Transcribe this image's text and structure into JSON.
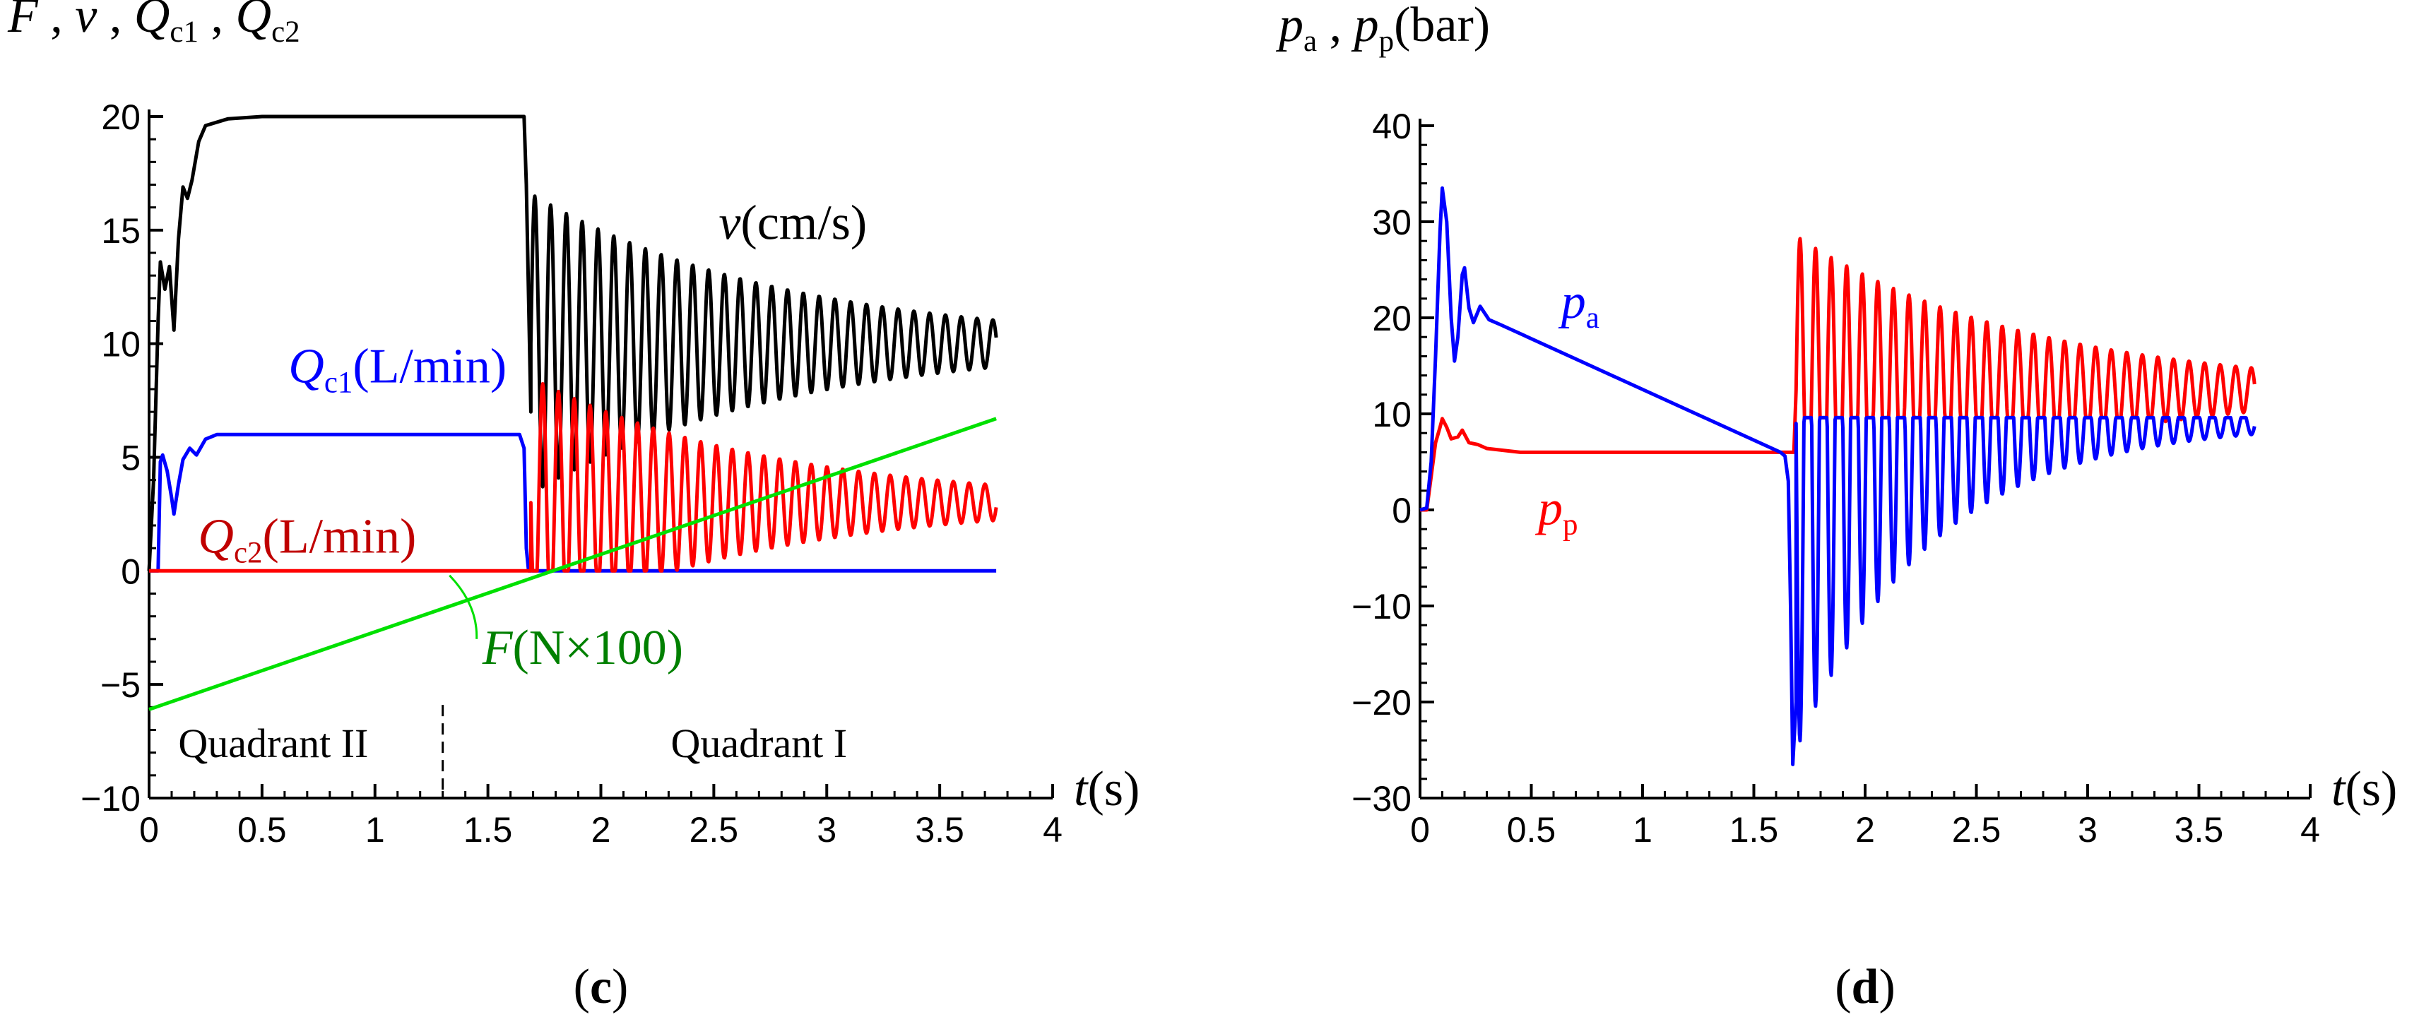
{
  "chart_data": [
    {
      "type": "line",
      "panel_label": "c",
      "title": "",
      "ylabel": {
        "parts": [
          {
            "t": "F",
            "i": true
          },
          {
            "t": " , "
          },
          {
            "t": "v",
            "i": true
          },
          {
            "t": " , "
          },
          {
            "t": "Q",
            "i": true
          },
          {
            "t": "c1",
            "sub": true
          },
          {
            "t": " , "
          },
          {
            "t": "Q",
            "i": true
          },
          {
            "t": "c2",
            "sub": true
          }
        ]
      },
      "xlabel": {
        "parts": [
          {
            "t": "t",
            "i": true
          },
          {
            "t": "(s)"
          }
        ]
      },
      "xlim": [
        0,
        4
      ],
      "ylim": [
        -10,
        20
      ],
      "x_ticks": [
        0,
        0.5,
        1,
        1.5,
        2,
        2.5,
        3,
        3.5,
        4
      ],
      "y_ticks": [
        -10,
        -5,
        0,
        5,
        10,
        15,
        20
      ],
      "quadrant_divider_x": 1.3,
      "quadrant_labels": [
        {
          "text": "Quadrant II",
          "x": 0.55,
          "y": -8.2
        },
        {
          "text": "Quadrant I",
          "x": 2.7,
          "y": -8.2
        }
      ],
      "series": [
        {
          "name": "v (cm/s)",
          "color": "#000000",
          "label": {
            "x": 2.85,
            "y": 14.6,
            "parts": [
              {
                "t": "v",
                "i": true
              },
              {
                "t": "(cm/s)"
              }
            ]
          },
          "points": [
            [
              0,
              0
            ],
            [
              0.02,
              4
            ],
            [
              0.04,
              11
            ],
            [
              0.05,
              13.6
            ],
            [
              0.07,
              12.4
            ],
            [
              0.09,
              13.4
            ],
            [
              0.11,
              10.6
            ],
            [
              0.13,
              14.6
            ],
            [
              0.15,
              16.9
            ],
            [
              0.17,
              16.4
            ],
            [
              0.19,
              17.2
            ],
            [
              0.22,
              18.9
            ],
            [
              0.25,
              19.6
            ],
            [
              0.35,
              19.9
            ],
            [
              0.5,
              20
            ],
            [
              1.66,
              20
            ],
            [
              1.67,
              17
            ],
            [
              1.68,
              12
            ],
            [
              1.69,
              7
            ]
          ],
          "oscillation": {
            "start": 1.69,
            "end": 3.75,
            "center": 10,
            "a0": 6.6,
            "decay": 0.9,
            "freq": 14.3,
            "phase": 0
          }
        },
        {
          "name": "Qc1 (L/min)",
          "color": "#0000ff",
          "label": {
            "x": 1.1,
            "y": 8.3,
            "parts": [
              {
                "t": "Q",
                "i": true
              },
              {
                "t": "c1",
                "sub": true
              },
              {
                "t": "(L/min)"
              }
            ]
          },
          "points": [
            [
              0,
              0
            ],
            [
              0.04,
              0
            ],
            [
              0.05,
              4.8
            ],
            [
              0.06,
              5.1
            ],
            [
              0.08,
              4.4
            ],
            [
              0.1,
              3.2
            ],
            [
              0.11,
              2.5
            ],
            [
              0.13,
              3.8
            ],
            [
              0.15,
              4.9
            ],
            [
              0.18,
              5.4
            ],
            [
              0.21,
              5.1
            ],
            [
              0.25,
              5.8
            ],
            [
              0.3,
              6
            ],
            [
              1.64,
              6
            ],
            [
              1.66,
              5.4
            ],
            [
              1.67,
              1
            ],
            [
              1.68,
              0
            ],
            [
              3.75,
              0
            ]
          ]
        },
        {
          "name": "Qc2 (L/min)",
          "color": "#ff0000",
          "label_color": "#c00000",
          "label": {
            "x": 0.7,
            "y": 0.8,
            "parts": [
              {
                "t": "Q",
                "i": true
              },
              {
                "t": "c2",
                "sub": true
              },
              {
                "t": "(L/min)"
              }
            ]
          },
          "points": [
            [
              0,
              0
            ],
            [
              1.69,
              0
            ]
          ],
          "oscillation": {
            "start": 1.69,
            "end": 3.75,
            "center": 3,
            "a0": 5.5,
            "decay": 0.95,
            "freq": 14.3,
            "phase": 3.14159,
            "clip_min": 0,
            "clip_until": 2.52
          }
        },
        {
          "name": "F (N×100)",
          "color": "#00e000",
          "label_color": "#008000",
          "label": {
            "x": 1.92,
            "y": -4.1,
            "parts": [
              {
                "t": "F",
                "i": true
              },
              {
                "t": "(N×100)"
              }
            ]
          },
          "leader": [
            [
              1.45,
              -3.0
            ],
            [
              1.33,
              -0.2
            ]
          ],
          "points": [
            [
              0,
              -6.1
            ],
            [
              3.75,
              6.7
            ]
          ]
        }
      ]
    },
    {
      "type": "line",
      "panel_label": "d",
      "title": "",
      "ylabel": {
        "parts": [
          {
            "t": "p",
            "i": true
          },
          {
            "t": "a",
            "sub": true
          },
          {
            "t": " , "
          },
          {
            "t": "p",
            "i": true
          },
          {
            "t": "p",
            "sub": true
          },
          {
            "t": "(bar)"
          }
        ]
      },
      "xlabel": {
        "parts": [
          {
            "t": "t",
            "i": true
          },
          {
            "t": "(s)"
          }
        ]
      },
      "xlim": [
        0,
        4
      ],
      "ylim": [
        -30,
        40
      ],
      "x_ticks": [
        0,
        0.5,
        1,
        1.5,
        2,
        2.5,
        3,
        3.5,
        4
      ],
      "y_ticks": [
        -30,
        -20,
        -10,
        0,
        10,
        20,
        30,
        40
      ],
      "series": [
        {
          "name": "pp",
          "color": "#ff0000",
          "label": {
            "x": 0.62,
            "y": -1.5,
            "parts": [
              {
                "t": "p",
                "i": true
              },
              {
                "t": "p",
                "sub": true
              }
            ]
          },
          "points": [
            [
              0,
              0
            ],
            [
              0.03,
              0
            ],
            [
              0.05,
              3.5
            ],
            [
              0.07,
              7
            ],
            [
              0.09,
              8.6
            ],
            [
              0.1,
              9.5
            ],
            [
              0.12,
              8.6
            ],
            [
              0.14,
              7.4
            ],
            [
              0.17,
              7.6
            ],
            [
              0.19,
              8.3
            ],
            [
              0.22,
              7
            ],
            [
              0.26,
              6.8
            ],
            [
              0.3,
              6.4
            ],
            [
              0.45,
              6
            ],
            [
              1.64,
              6
            ],
            [
              1.68,
              6
            ]
          ],
          "oscillation": {
            "start": 1.69,
            "end": 3.75,
            "center": 12.5,
            "a0": 16,
            "decay": 0.95,
            "freq": 14.3,
            "phase": 0,
            "clip_min": 9.6,
            "clip_until": 3.3
          }
        },
        {
          "name": "pa",
          "color": "#0000ff",
          "label": {
            "x": 0.72,
            "y": 20,
            "parts": [
              {
                "t": "p",
                "i": true
              },
              {
                "t": "a",
                "sub": true
              }
            ]
          },
          "points": [
            [
              0,
              0
            ],
            [
              0.03,
              0.2
            ],
            [
              0.05,
              5
            ],
            [
              0.07,
              16
            ],
            [
              0.09,
              29
            ],
            [
              0.1,
              33.5
            ],
            [
              0.12,
              30
            ],
            [
              0.14,
              20
            ],
            [
              0.155,
              15.5
            ],
            [
              0.17,
              18
            ],
            [
              0.19,
              24.5
            ],
            [
              0.2,
              25.2
            ],
            [
              0.22,
              21
            ],
            [
              0.24,
              19.5
            ],
            [
              0.27,
              21.2
            ],
            [
              0.31,
              19.8
            ],
            [
              0.36,
              19.3
            ],
            [
              1.62,
              6
            ],
            [
              1.64,
              5.6
            ],
            [
              1.655,
              3
            ],
            [
              1.665,
              -10
            ],
            [
              1.675,
              -26.5
            ],
            [
              1.69,
              -20
            ]
          ],
          "oscillation": {
            "start": 1.69,
            "end": 3.75,
            "center": 9,
            "a0": 34,
            "decay": 1.65,
            "freq": 14.3,
            "phase": 3.14159,
            "clip_max": 9.6
          }
        }
      ]
    }
  ]
}
